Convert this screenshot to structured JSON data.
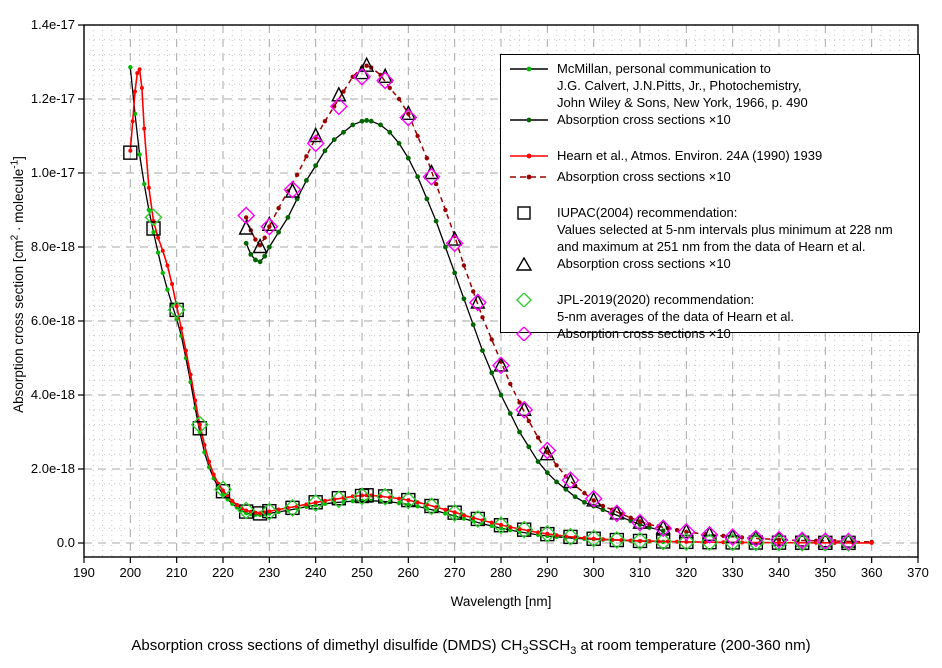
{
  "caption": {
    "parts": [
      "Absorption cross sections of dimethyl disulfide (DMDS) CH",
      "3",
      "SSCH",
      "3",
      " at room temperature (200-360 nm)"
    ]
  },
  "axes": {
    "x": {
      "title": "Wavelength [nm]",
      "min": 190,
      "max": 370,
      "major_tick_step": 10,
      "minor_tick_step": 2,
      "ticks": [
        190,
        200,
        210,
        220,
        230,
        240,
        250,
        260,
        270,
        280,
        290,
        300,
        310,
        320,
        330,
        340,
        350,
        360,
        370
      ]
    },
    "y": {
      "title_parts": [
        "Absorption cross section [cm",
        "2",
        " · molecule",
        "-1",
        "]"
      ],
      "min": 0,
      "max": 1.4e-17,
      "tick_values": [
        0,
        2,
        4,
        6,
        8,
        10,
        12,
        14
      ],
      "tick_labels": [
        "0.0",
        "2.0e-18",
        "4.0e-18",
        "6.0e-18",
        "8.0e-18",
        "1.0e-17",
        "1.2e-17",
        "1.4e-17"
      ],
      "values_unit": "1e-18 cm2 molecule-1"
    }
  },
  "colors": {
    "frame": "#000000",
    "grid_major": "#a8a8a8",
    "grid_minor": "#c6c6c6",
    "mcmillan_dot": "#00bb00",
    "mcmillan_x10_dot": "#006600",
    "hearn": "#ff0000",
    "hearn_x10": "#990000",
    "iupac": "#000000",
    "jpl": "#2fcc2f",
    "jpl_x10": "#ff00ff"
  },
  "legend": {
    "entries": [
      {
        "id": "mcmillan",
        "sample": {
          "kind": "line",
          "color": "#000000",
          "dash": "",
          "dot": "#00bb00"
        },
        "text": "McMillan, personal communication to\nJ.G. Calvert, J.N.Pitts, Jr., Photochemistry,\nJohn Wiley & Sons, New York, 1966, p. 490",
        "gap": false
      },
      {
        "id": "mcmillan-x10",
        "sample": {
          "kind": "line",
          "color": "#000000",
          "dash": "",
          "dot": "#006600"
        },
        "text": "Absorption cross sections ×10",
        "gap": false
      },
      {
        "id": "hearn",
        "sample": {
          "kind": "line",
          "color": "#ff0000",
          "dash": "",
          "dot": "#ff0000"
        },
        "text": " Hearn et al., Atmos. Environ. 24A (1990) 1939",
        "gap": true
      },
      {
        "id": "hearn-x10",
        "sample": {
          "kind": "line",
          "color": "#990000",
          "dash": "6,4",
          "dot": "#990000"
        },
        "text": "Absorption cross sections ×10",
        "gap": false
      },
      {
        "id": "iupac",
        "sample": {
          "kind": "marker",
          "marker": "square",
          "color": "#000000"
        },
        "text": "IUPAC(2004) recommendation:\nValues selected at 5-nm intervals plus minimum at 228 nm\nand maximum at 251 nm from the data of Hearn et al.",
        "gap": true
      },
      {
        "id": "iupac-x10",
        "sample": {
          "kind": "marker",
          "marker": "triangle",
          "color": "#000000"
        },
        "text": "Absorption cross sections ×10",
        "gap": false
      },
      {
        "id": "jpl",
        "sample": {
          "kind": "marker",
          "marker": "diamond",
          "color": "#2fcc2f"
        },
        "text": "JPL-2019(2020) recommendation:\n5-nm averages of the data of Hearn et al.",
        "gap": true
      },
      {
        "id": "jpl-x10",
        "sample": {
          "kind": "marker",
          "marker": "diamond",
          "color": "#ff00ff"
        },
        "text": "Absorption cross sections ×10",
        "gap": false
      }
    ]
  },
  "chart_data": {
    "type": "line",
    "title": "Absorption cross sections of dimethyl disulfide (DMDS) CH3SSCH3 at room temperature (200-360 nm)",
    "xlabel": "Wavelength [nm]",
    "ylabel": "Absorption cross section [cm2 molecule-1]",
    "xlim": [
      190,
      370
    ],
    "ylim": [
      0,
      1.4e-17
    ],
    "grid": true,
    "legend_position": "upper right inside",
    "y_values_unit": "1e-18 cm2 molecule-1",
    "series": [
      {
        "name": "McMillan, personal communication (Calvert & Pitts 1966 p.490)",
        "id": "mcmillan",
        "style": {
          "type": "line+dot",
          "line_color": "#000000",
          "line_width": 1.3,
          "dash": "",
          "dot_color": "#00bb00",
          "dot_r": 2.2
        },
        "x": [
          200,
          201,
          202,
          203,
          204,
          205,
          206,
          207,
          208,
          209,
          210,
          211,
          212,
          213,
          214,
          215,
          216,
          217,
          218,
          219,
          220,
          221,
          222,
          223,
          224,
          225,
          226,
          227,
          228,
          229,
          230,
          232,
          234,
          236,
          238,
          240,
          242,
          244,
          246,
          248,
          250,
          251,
          252,
          254,
          256,
          258,
          260,
          262,
          264,
          266,
          268,
          270,
          272,
          274,
          276,
          278,
          280,
          282,
          284,
          286,
          288,
          290,
          292,
          294,
          296,
          298,
          300,
          302,
          304,
          306,
          308,
          310,
          312,
          315
        ],
        "y": [
          12.86,
          11.6,
          10.5,
          9.7,
          9.0,
          8.4,
          7.85,
          7.3,
          6.85,
          6.45,
          6.05,
          5.6,
          5.0,
          4.35,
          3.65,
          3.0,
          2.45,
          2.05,
          1.75,
          1.5,
          1.32,
          1.18,
          1.06,
          0.96,
          0.88,
          0.81,
          0.78,
          0.765,
          0.76,
          0.775,
          0.8,
          0.84,
          0.88,
          0.93,
          0.98,
          1.02,
          1.06,
          1.09,
          1.11,
          1.13,
          1.14,
          1.142,
          1.14,
          1.13,
          1.11,
          1.08,
          1.04,
          0.99,
          0.93,
          0.87,
          0.8,
          0.73,
          0.66,
          0.59,
          0.52,
          0.46,
          0.4,
          0.35,
          0.3,
          0.26,
          0.22,
          0.19,
          0.165,
          0.145,
          0.125,
          0.11,
          0.1,
          0.09,
          0.08,
          0.07,
          0.06,
          0.05,
          0.042,
          0.033
        ]
      },
      {
        "name": "McMillan absorption cross sections x10",
        "id": "mcmillan_x10",
        "style": {
          "type": "line+dot",
          "line_color": "#000000",
          "line_width": 1.3,
          "dash": "",
          "dot_color": "#006600",
          "dot_r": 2.4
        },
        "x": [
          225,
          226,
          227,
          228,
          229,
          230,
          232,
          234,
          236,
          238,
          240,
          242,
          244,
          246,
          248,
          250,
          251,
          252,
          254,
          256,
          258,
          260,
          262,
          264,
          266,
          268,
          270,
          272,
          274,
          276,
          278,
          280,
          282,
          284,
          286,
          288,
          290,
          292,
          294,
          296,
          298,
          300,
          302,
          304,
          306,
          308,
          310,
          312,
          315
        ],
        "y": [
          8.1,
          7.8,
          7.65,
          7.6,
          7.75,
          8.0,
          8.4,
          8.8,
          9.3,
          9.8,
          10.2,
          10.6,
          10.9,
          11.1,
          11.3,
          11.4,
          11.42,
          11.4,
          11.3,
          11.1,
          10.8,
          10.4,
          9.9,
          9.3,
          8.7,
          8.0,
          7.3,
          6.6,
          5.9,
          5.2,
          4.6,
          4.0,
          3.5,
          3.0,
          2.6,
          2.2,
          1.9,
          1.65,
          1.45,
          1.25,
          1.1,
          1.0,
          0.9,
          0.8,
          0.7,
          0.6,
          0.5,
          0.42,
          0.33
        ]
      },
      {
        "name": "Hearn et al., Atmos. Environ. 24A (1990) 1939",
        "id": "hearn",
        "style": {
          "type": "line+dot",
          "line_color": "#ff0000",
          "line_width": 1.6,
          "dash": "",
          "dot_color": "#ff0000",
          "dot_r": 2.0
        },
        "x": [
          200,
          200.5,
          201,
          201.5,
          202,
          202.5,
          203,
          204,
          205,
          206,
          207,
          208,
          209,
          210,
          211,
          212,
          213,
          214,
          215,
          216,
          217,
          218,
          219,
          220,
          221,
          222,
          223,
          224,
          225,
          226,
          227,
          228,
          229,
          230,
          232,
          234,
          236,
          238,
          240,
          242,
          244,
          246,
          248,
          250,
          251,
          252,
          254,
          256,
          258,
          260,
          262,
          264,
          266,
          268,
          270,
          272,
          274,
          276,
          278,
          280,
          282,
          284,
          286,
          288,
          290,
          292,
          294,
          296,
          298,
          300,
          302,
          304,
          306,
          308,
          310,
          312,
          314,
          316,
          318,
          320,
          324,
          328,
          332,
          336,
          340,
          344,
          348,
          352,
          356,
          360
        ],
        "y": [
          10.6,
          11.4,
          12.2,
          12.7,
          12.8,
          12.3,
          11.2,
          9.6,
          8.7,
          8.25,
          7.9,
          7.5,
          7.0,
          6.4,
          5.8,
          5.2,
          4.55,
          3.85,
          3.2,
          2.65,
          2.2,
          1.85,
          1.6,
          1.42,
          1.27,
          1.14,
          1.03,
          0.94,
          0.88,
          0.845,
          0.82,
          0.805,
          0.825,
          0.855,
          0.905,
          0.95,
          0.995,
          1.045,
          1.095,
          1.14,
          1.18,
          1.22,
          1.26,
          1.285,
          1.29,
          1.285,
          1.265,
          1.23,
          1.2,
          1.16,
          1.1,
          1.04,
          0.97,
          0.9,
          0.83,
          0.75,
          0.68,
          0.61,
          0.55,
          0.49,
          0.43,
          0.38,
          0.33,
          0.285,
          0.245,
          0.21,
          0.18,
          0.155,
          0.135,
          0.115,
          0.1,
          0.09,
          0.078,
          0.068,
          0.058,
          0.05,
          0.045,
          0.04,
          0.035,
          0.03,
          0.024,
          0.019,
          0.015,
          0.012,
          0.009,
          0.007,
          0.006,
          0.005,
          0.004,
          0.003
        ]
      },
      {
        "name": "Hearn absorption cross sections x10",
        "id": "hearn_x10",
        "style": {
          "type": "line+dot",
          "line_color": "#990000",
          "line_width": 1.5,
          "dash": "5,4",
          "dot_color": "#990000",
          "dot_r": 2.2
        },
        "x": [
          225,
          226,
          227,
          228,
          229,
          230,
          232,
          234,
          236,
          238,
          240,
          242,
          244,
          246,
          248,
          250,
          251,
          252,
          254,
          256,
          258,
          260,
          262,
          264,
          266,
          268,
          270,
          272,
          274,
          276,
          278,
          280,
          282,
          284,
          286,
          288,
          290,
          292,
          294,
          296,
          298,
          300,
          302,
          304,
          306,
          308,
          310,
          312,
          314,
          316,
          318,
          320,
          324,
          328,
          332,
          336,
          340,
          344,
          348,
          352,
          356,
          360
        ],
        "y": [
          8.8,
          8.45,
          8.2,
          8.05,
          8.25,
          8.55,
          9.05,
          9.5,
          9.95,
          10.45,
          10.95,
          11.4,
          11.8,
          12.2,
          12.6,
          12.85,
          12.9,
          12.85,
          12.65,
          12.3,
          12.0,
          11.6,
          11.0,
          10.4,
          9.7,
          9.0,
          8.3,
          7.5,
          6.8,
          6.1,
          5.5,
          4.9,
          4.3,
          3.8,
          3.3,
          2.85,
          2.45,
          2.1,
          1.8,
          1.55,
          1.35,
          1.15,
          1.0,
          0.9,
          0.78,
          0.68,
          0.58,
          0.5,
          0.45,
          0.4,
          0.35,
          0.3,
          0.24,
          0.19,
          0.15,
          0.12,
          0.09,
          0.07,
          0.06,
          0.05,
          0.04,
          0.03
        ]
      },
      {
        "name": "IUPAC(2004) recommendation (5-nm intervals plus min 228 nm, max 251 nm)",
        "id": "iupac",
        "style": {
          "type": "marker",
          "marker": "square",
          "color": "#000000",
          "size": 13
        },
        "x": [
          200,
          205,
          210,
          215,
          220,
          225,
          228,
          230,
          235,
          240,
          245,
          250,
          251,
          255,
          260,
          265,
          270,
          275,
          280,
          285,
          290,
          295,
          300,
          305,
          310,
          315,
          320,
          325,
          330,
          335,
          340,
          345,
          350,
          355
        ],
        "y": [
          10.55,
          8.5,
          6.3,
          3.1,
          1.4,
          0.85,
          0.8,
          0.86,
          0.95,
          1.1,
          1.21,
          1.27,
          1.29,
          1.26,
          1.16,
          1.0,
          0.82,
          0.65,
          0.48,
          0.36,
          0.24,
          0.165,
          0.115,
          0.08,
          0.055,
          0.04,
          0.03,
          0.022,
          0.016,
          0.012,
          0.009,
          0.007,
          0.005,
          0.004
        ]
      },
      {
        "name": "IUPAC absorption cross sections x10",
        "id": "iupac_x10",
        "style": {
          "type": "marker",
          "marker": "triangle",
          "color": "#000000",
          "size": 13
        },
        "x": [
          225,
          228,
          230,
          235,
          240,
          245,
          250,
          251,
          255,
          260,
          265,
          270,
          275,
          280,
          285,
          290,
          295,
          300,
          305,
          310,
          315,
          320,
          325,
          330,
          335,
          340,
          345,
          350,
          355
        ],
        "y": [
          8.5,
          8.0,
          8.6,
          9.5,
          11.0,
          12.1,
          12.7,
          12.9,
          12.6,
          11.6,
          10.0,
          8.2,
          6.5,
          4.8,
          3.6,
          2.4,
          1.65,
          1.15,
          0.8,
          0.55,
          0.4,
          0.3,
          0.22,
          0.16,
          0.12,
          0.09,
          0.07,
          0.05,
          0.04
        ]
      },
      {
        "name": "JPL-2019(2020) recommendation (5-nm averages of Hearn et al.)",
        "id": "jpl",
        "style": {
          "type": "marker",
          "marker": "diamond",
          "color": "#2fcc2f",
          "size": 14
        },
        "x": [
          205,
          210,
          215,
          220,
          225,
          230,
          235,
          240,
          245,
          250,
          255,
          260,
          265,
          270,
          275,
          280,
          285,
          290,
          295,
          300,
          305,
          310,
          315,
          320,
          325,
          330,
          335,
          340,
          345,
          350,
          355
        ],
        "y": [
          8.8,
          6.3,
          3.2,
          1.45,
          0.88,
          0.85,
          0.95,
          1.08,
          1.18,
          1.26,
          1.25,
          1.15,
          0.99,
          0.81,
          0.65,
          0.48,
          0.36,
          0.25,
          0.17,
          0.12,
          0.08,
          0.055,
          0.04,
          0.03,
          0.022,
          0.016,
          0.012,
          0.009,
          0.007,
          0.005,
          0.004
        ]
      },
      {
        "name": "JPL absorption cross sections x10",
        "id": "jpl_x10",
        "style": {
          "type": "marker",
          "marker": "diamond",
          "color": "#ff00ff",
          "size": 14
        },
        "x": [
          225,
          230,
          235,
          240,
          245,
          250,
          255,
          260,
          265,
          270,
          275,
          280,
          285,
          290,
          295,
          300,
          305,
          310,
          315,
          320,
          325,
          330,
          335,
          340,
          345,
          350,
          355
        ],
        "y": [
          8.85,
          8.55,
          9.55,
          10.8,
          11.8,
          12.6,
          12.5,
          11.5,
          9.9,
          8.1,
          6.5,
          4.8,
          3.6,
          2.5,
          1.7,
          1.2,
          0.8,
          0.55,
          0.4,
          0.3,
          0.22,
          0.16,
          0.12,
          0.09,
          0.07,
          0.05,
          0.04
        ]
      }
    ]
  }
}
